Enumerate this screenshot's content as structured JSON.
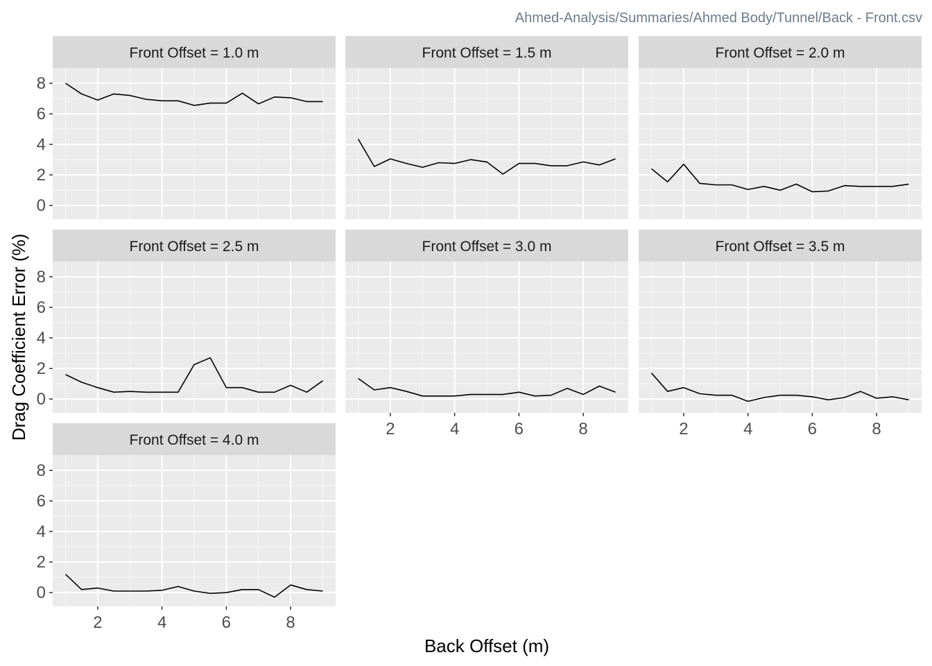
{
  "chart_data": {
    "type": "line",
    "caption": "Ahmed-Analysis/Summaries/Ahmed Body/Tunnel/Back - Front.csv",
    "xlabel": "Back Offset (m)",
    "ylabel": "Drag Coefficient Error (%)",
    "xlim": [
      0.6,
      9.4
    ],
    "ylim": [
      -0.9,
      9.0
    ],
    "x_ticks": [
      2,
      4,
      6,
      8
    ],
    "y_ticks": [
      0,
      2,
      4,
      6,
      8
    ],
    "grid": true,
    "line_color": "#000000",
    "panel_background": "#ebebeb",
    "strip_background": "#d9d9d9",
    "panels": [
      {
        "label": "Front Offset = 1.0 m",
        "x": [
          1.0,
          1.5,
          2.0,
          2.5,
          3.0,
          3.5,
          4.0,
          4.5,
          5.0,
          5.5,
          6.0,
          6.5,
          7.0,
          7.5,
          8.0,
          8.5,
          9.0
        ],
        "y": [
          8.0,
          7.3,
          6.9,
          7.3,
          7.2,
          6.95,
          6.85,
          6.85,
          6.55,
          6.7,
          6.7,
          7.35,
          6.65,
          7.1,
          7.05,
          6.8,
          6.8
        ]
      },
      {
        "label": "Front Offset = 1.5 m",
        "x": [
          1.0,
          1.5,
          2.0,
          2.5,
          3.0,
          3.5,
          4.0,
          4.5,
          5.0,
          5.5,
          6.0,
          6.5,
          7.0,
          7.5,
          8.0,
          8.5,
          9.0
        ],
        "y": [
          4.35,
          2.55,
          3.05,
          2.75,
          2.5,
          2.8,
          2.75,
          3.0,
          2.85,
          2.05,
          2.75,
          2.75,
          2.6,
          2.6,
          2.85,
          2.65,
          3.05
        ]
      },
      {
        "label": "Front Offset = 2.0 m",
        "x": [
          1.0,
          1.5,
          2.0,
          2.5,
          3.0,
          3.5,
          4.0,
          4.5,
          5.0,
          5.5,
          6.0,
          6.5,
          7.0,
          7.5,
          8.0,
          8.5,
          9.0
        ],
        "y": [
          2.4,
          1.55,
          2.7,
          1.45,
          1.35,
          1.35,
          1.05,
          1.25,
          1.0,
          1.4,
          0.9,
          0.95,
          1.3,
          1.25,
          1.25,
          1.25,
          1.4
        ]
      },
      {
        "label": "Front Offset = 2.5 m",
        "x": [
          1.0,
          1.5,
          2.0,
          2.5,
          3.0,
          3.5,
          4.0,
          4.5,
          5.0,
          5.5,
          6.0,
          6.5,
          7.0,
          7.5,
          8.0,
          8.5,
          9.0
        ],
        "y": [
          1.6,
          1.1,
          0.75,
          0.45,
          0.5,
          0.45,
          0.45,
          0.45,
          2.25,
          2.7,
          0.75,
          0.75,
          0.45,
          0.45,
          0.9,
          0.45,
          1.2
        ]
      },
      {
        "label": "Front Offset = 3.0 m",
        "x": [
          1.0,
          1.5,
          2.0,
          2.5,
          3.0,
          3.5,
          4.0,
          4.5,
          5.0,
          5.5,
          6.0,
          6.5,
          7.0,
          7.5,
          8.0,
          8.5,
          9.0
        ],
        "y": [
          1.35,
          0.6,
          0.75,
          0.5,
          0.2,
          0.2,
          0.2,
          0.3,
          0.3,
          0.3,
          0.45,
          0.2,
          0.25,
          0.7,
          0.3,
          0.85,
          0.45
        ]
      },
      {
        "label": "Front Offset = 3.5 m",
        "x": [
          1.0,
          1.5,
          2.0,
          2.5,
          3.0,
          3.5,
          4.0,
          4.5,
          5.0,
          5.5,
          6.0,
          6.5,
          7.0,
          7.5,
          8.0,
          8.5,
          9.0
        ],
        "y": [
          1.7,
          0.5,
          0.75,
          0.35,
          0.25,
          0.25,
          -0.15,
          0.1,
          0.25,
          0.25,
          0.15,
          -0.05,
          0.1,
          0.5,
          0.05,
          0.15,
          -0.05
        ]
      },
      {
        "label": "Front Offset = 4.0 m",
        "x": [
          1.0,
          1.5,
          2.0,
          2.5,
          3.0,
          3.5,
          4.0,
          4.5,
          5.0,
          5.5,
          6.0,
          6.5,
          7.0,
          7.5,
          8.0,
          8.5,
          9.0
        ],
        "y": [
          1.2,
          0.2,
          0.3,
          0.1,
          0.1,
          0.1,
          0.15,
          0.4,
          0.1,
          -0.05,
          0.0,
          0.2,
          0.2,
          -0.3,
          0.5,
          0.2,
          0.1
        ]
      }
    ]
  }
}
